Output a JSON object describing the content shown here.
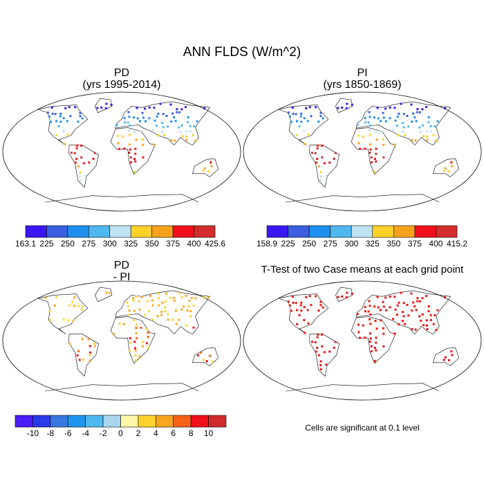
{
  "title": "ANN FLDS (W/m^2)",
  "panels": [
    {
      "title": "PD",
      "subtitle": "(yrs 1995-2014)",
      "colorbar": {
        "labels": [
          "163.1",
          "225",
          "250",
          "275",
          "300",
          "325",
          "350",
          "375",
          "400",
          "425.6"
        ],
        "colors": [
          "#3a17f5",
          "#3b5fe0",
          "#1e8fef",
          "#4fb8ef",
          "#bfe3f2",
          "#fcd22a",
          "#f6a21e",
          "#f0101c",
          "#d42d2d"
        ]
      }
    },
    {
      "title": "PI",
      "subtitle": "(yrs 1850-1869)",
      "colorbar": {
        "labels": [
          "158.9",
          "225",
          "250",
          "275",
          "300",
          "325",
          "350",
          "375",
          "400",
          "415.2"
        ],
        "colors": [
          "#3a17f5",
          "#3b5fe0",
          "#1e8fef",
          "#4fb8ef",
          "#bfe3f2",
          "#fcd22a",
          "#f6a21e",
          "#f0101c",
          "#d42d2d"
        ]
      }
    },
    {
      "title": "PD",
      "subtitle": "- PI",
      "colorbar": {
        "labels": [
          "-10",
          "-8",
          "-6",
          "-4",
          "-2",
          "0",
          "2",
          "4",
          "6",
          "8",
          "10"
        ],
        "colors": [
          "#4b1cf5",
          "#2b3ae8",
          "#3a78e0",
          "#1f96ee",
          "#4fbaf0",
          "#abd6f0",
          "#fff8a8",
          "#fdd22c",
          "#f8a61f",
          "#f46118",
          "#ef101a",
          "#cf2d2d"
        ]
      }
    },
    {
      "title": "T-Test of two Case means at each grid point",
      "note": "Cells are significant at 0.1 level",
      "dot_color": "#ee1111"
    }
  ]
}
